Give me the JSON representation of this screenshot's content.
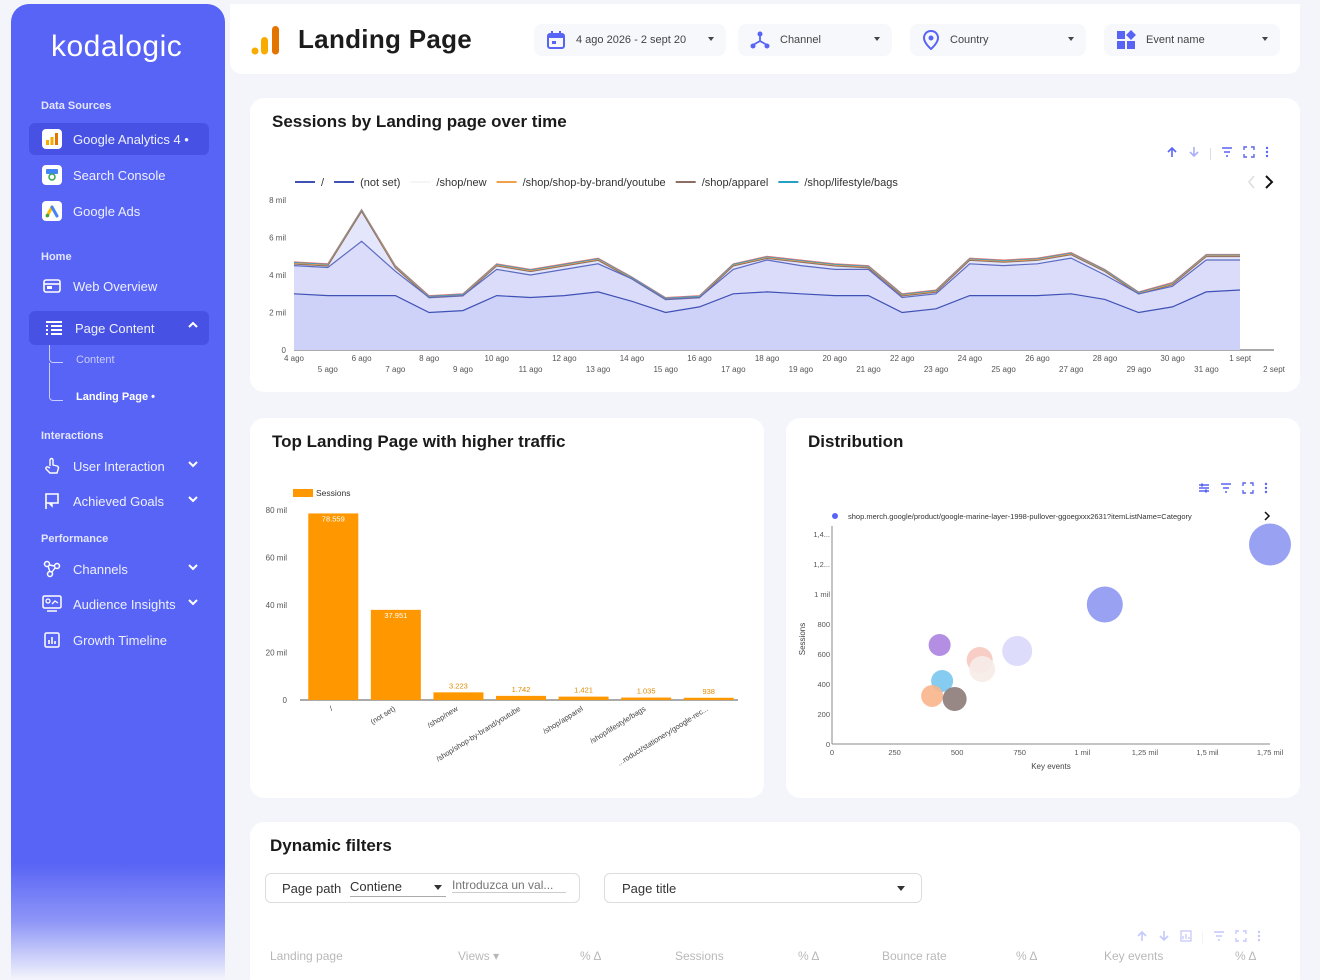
{
  "sidebar": {
    "logo": "kodalogic",
    "sections": {
      "data_sources": "Data Sources",
      "home": "Home",
      "interactions": "Interactions",
      "performance": "Performance"
    },
    "items": {
      "ga4": "Google Analytics 4 •",
      "search_console": "Search Console",
      "google_ads": "Google Ads",
      "web_overview": "Web Overview",
      "page_content": "Page Content",
      "content": "Content",
      "landing_page": "Landing Page •",
      "user_interaction": "User Interaction",
      "achieved_goals": "Achieved Goals",
      "channels": "Channels",
      "audience_insights": "Audience Insights",
      "growth_timeline": "Growth Timeline"
    }
  },
  "header": {
    "title": "Landing Page",
    "date_range": "4 ago 2026 - 2 sept 20",
    "channel": "Channel",
    "country": "Country",
    "event_name": "Event name"
  },
  "colors": {
    "accent": "#5864f5",
    "orange": "#ff9800",
    "area": "#dcdffb"
  },
  "cards": {
    "sessions_title": "Sessions by Landing page over time",
    "top_title": "Top Landing Page with higher traffic",
    "distribution_title": "Distribution",
    "dynamic_title": "Dynamic filters"
  },
  "dynamic": {
    "page_path_label": "Page path",
    "operator": "Contiene",
    "value_placeholder": "Introduzca un val...",
    "page_title_select": "Page title",
    "columns": [
      "Landing page",
      "Views ▾",
      "% Δ",
      "Sessions",
      "% Δ",
      "Bounce rate",
      "% Δ",
      "Key events",
      "% Δ"
    ]
  },
  "chart_data": [
    {
      "type": "area",
      "title": "Sessions by Landing page over time",
      "legend": [
        "/",
        "(not set)",
        "/shop/new",
        "/shop/shop-by-brand/youtube",
        "/shop/apparel",
        "/shop/lifestyle/bags"
      ],
      "legend_colors": [
        "#3f51b5",
        "#3f51b5",
        "#f5f5f5",
        "#f0a04b",
        "#8d6e63",
        "#26a0c8"
      ],
      "y_ticks": [
        "0",
        "2 mil",
        "4 mil",
        "6 mil",
        "8 mil"
      ],
      "ylim": [
        0,
        8000
      ],
      "x_ticks_top": [
        "4 ago",
        "6 ago",
        "8 ago",
        "10 ago",
        "12 ago",
        "14 ago",
        "16 ago",
        "18 ago",
        "20 ago",
        "22 ago",
        "24 ago",
        "26 ago",
        "28 ago",
        "30 ago",
        "1 sept"
      ],
      "x_ticks_bottom": [
        "5 ago",
        "7 ago",
        "9 ago",
        "11 ago",
        "13 ago",
        "15 ago",
        "17 ago",
        "19 ago",
        "21 ago",
        "23 ago",
        "25 ago",
        "27 ago",
        "29 ago",
        "31 ago",
        "2 sept"
      ],
      "series": [
        {
          "name": "(not set)",
          "values": [
            3000,
            2900,
            2900,
            2900,
            2000,
            2100,
            2900,
            2800,
            2900,
            3100,
            2600,
            2000,
            2300,
            3000,
            3100,
            3000,
            2900,
            2900,
            2000,
            2200,
            2900,
            2900,
            2900,
            3000,
            2700,
            2000,
            2300,
            3100,
            3200
          ]
        },
        {
          "name": "/",
          "values": [
            4500,
            4400,
            5800,
            4200,
            2800,
            2900,
            4300,
            4000,
            4300,
            4600,
            3800,
            2700,
            2800,
            4300,
            4800,
            4500,
            4300,
            4300,
            2800,
            3000,
            4600,
            4500,
            4600,
            4900,
            4000,
            3000,
            3400,
            4800,
            4800
          ]
        },
        {
          "name": "total",
          "values": [
            4700,
            4600,
            7500,
            4500,
            2900,
            3000,
            4600,
            4300,
            4600,
            4900,
            3900,
            2800,
            2900,
            4600,
            5000,
            4800,
            4600,
            4500,
            3000,
            3200,
            4900,
            4800,
            4900,
            5200,
            4300,
            3100,
            3600,
            5100,
            5100
          ]
        }
      ]
    },
    {
      "type": "bar",
      "title": "Top Landing Page with higher traffic",
      "legend": [
        "Sessions"
      ],
      "categories": [
        "/",
        "(not set)",
        "/shop/new",
        "/shop/shop-by-brand/youtube",
        "/shop/apparel",
        "/shop/lifestyle/bags",
        "...roduct/stationery/google-rec..."
      ],
      "values": [
        78559,
        37951,
        3223,
        1742,
        1421,
        1035,
        938
      ],
      "value_labels": [
        "78.559",
        "37.951",
        "3.223",
        "1.742",
        "1.421",
        "1.035",
        "938"
      ],
      "y_ticks": [
        "0",
        "20 mil",
        "40 mil",
        "60 mil",
        "80 mil"
      ],
      "ylim": [
        0,
        80000
      ]
    },
    {
      "type": "scatter",
      "title": "Distribution",
      "legend": [
        "shop.merch.google/product/google-marine-layer-1998-pullover-ggoegxxx2631?itemListName=Category"
      ],
      "xlabel": "Key events",
      "ylabel": "Sessions",
      "x_ticks": [
        "0",
        "250",
        "500",
        "750",
        "1 mil",
        "1,25 mil",
        "1,5 mil",
        "1,75 mil"
      ],
      "y_ticks": [
        "0",
        "200",
        "400",
        "600",
        "800",
        "1 mil",
        "1,2...",
        "1,4..."
      ],
      "xlim": [
        0,
        1750
      ],
      "ylim": [
        0,
        1400
      ],
      "points": [
        {
          "x": 1750,
          "y": 1330,
          "color": "#8e97f2",
          "size": 21
        },
        {
          "x": 1090,
          "y": 930,
          "color": "#8e97f2",
          "size": 18
        },
        {
          "x": 740,
          "y": 620,
          "color": "#d9d8fb",
          "size": 15
        },
        {
          "x": 590,
          "y": 560,
          "color": "#f6c8c0",
          "size": 13
        },
        {
          "x": 600,
          "y": 500,
          "color": "#f6ece8",
          "size": 13
        },
        {
          "x": 430,
          "y": 660,
          "color": "#ab82e0",
          "size": 11
        },
        {
          "x": 440,
          "y": 420,
          "color": "#78c6ee",
          "size": 11
        },
        {
          "x": 400,
          "y": 320,
          "color": "#f8b58c",
          "size": 11
        },
        {
          "x": 490,
          "y": 300,
          "color": "#8c7a78",
          "size": 12
        }
      ]
    }
  ]
}
